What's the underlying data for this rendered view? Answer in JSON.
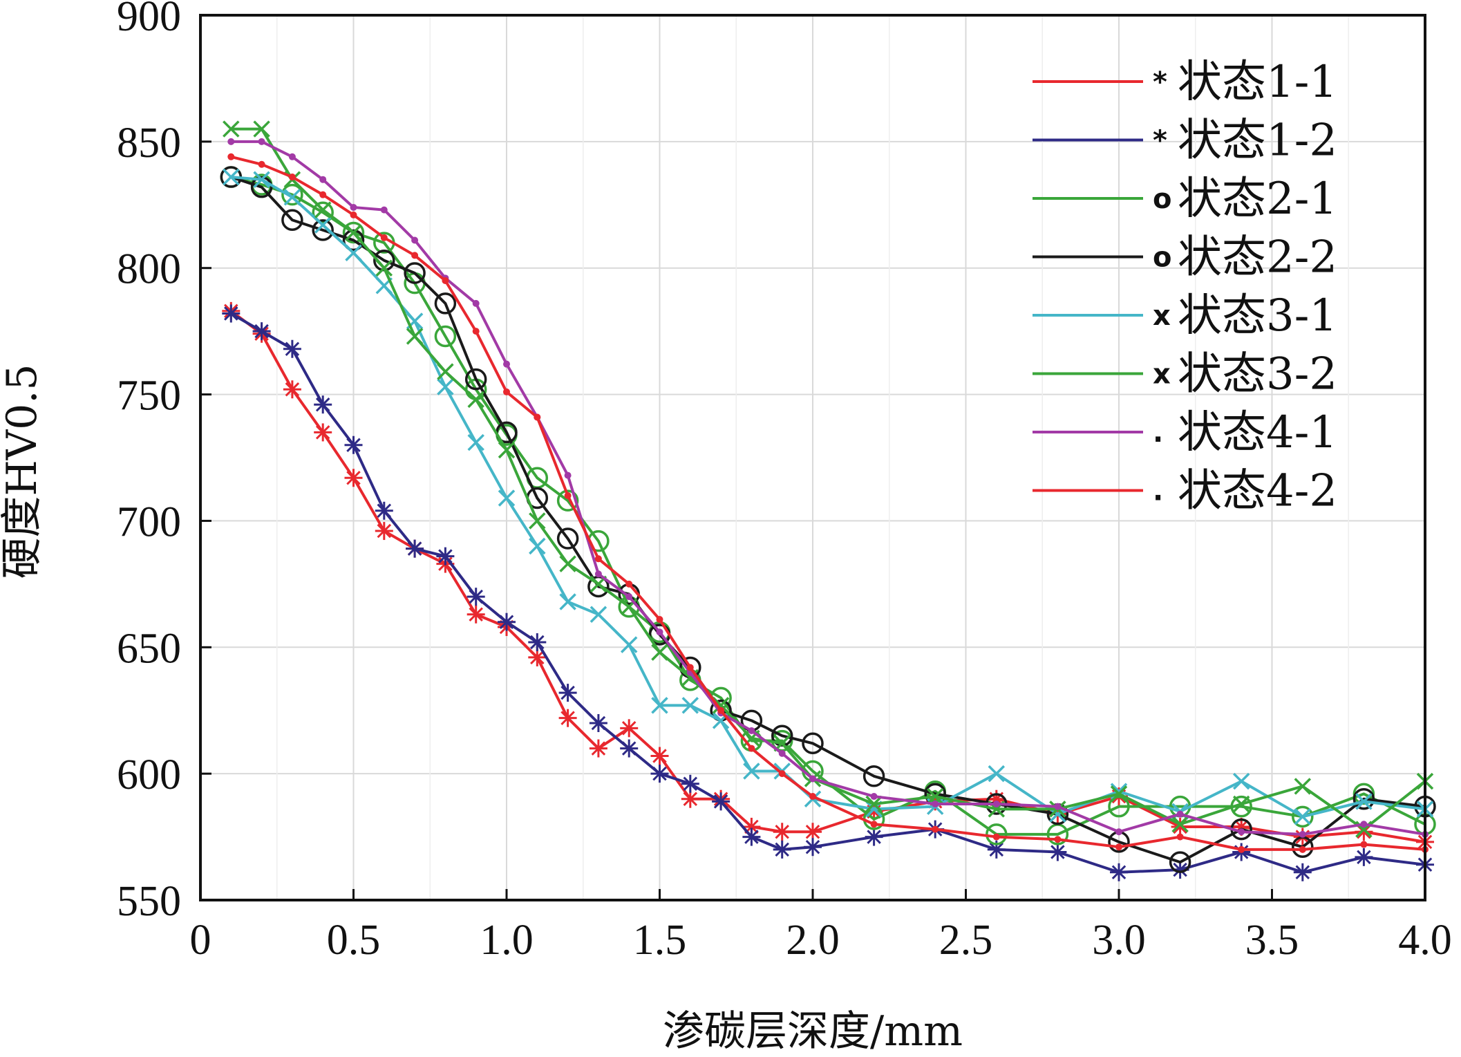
{
  "chart_data": {
    "type": "line",
    "xlabel": "渗碳层深度/mm",
    "ylabel": "硬度HV0.5",
    "xlim": [
      0,
      4.0
    ],
    "ylim": [
      550,
      900
    ],
    "x_ticks": [
      "0",
      "0.5",
      "1.0",
      "1.5",
      "2.0",
      "2.5",
      "3.0",
      "3.5",
      "4.0"
    ],
    "y_ticks": [
      "550",
      "600",
      "650",
      "700",
      "750",
      "800",
      "850",
      "900"
    ],
    "grid": true,
    "legend_position": "top-right",
    "series": [
      {
        "name": "状态1-1",
        "color": "#e8282e",
        "marker": "star",
        "x": [
          0.1,
          0.2,
          0.3,
          0.4,
          0.5,
          0.6,
          0.7,
          0.8,
          0.9,
          1.0,
          1.1,
          1.2,
          1.3,
          1.4,
          1.5,
          1.6,
          1.7,
          1.8,
          1.9,
          2.0,
          2.2,
          2.4,
          2.6,
          2.8,
          3.0,
          3.2,
          3.4,
          3.6,
          3.8,
          4.0
        ],
        "y": [
          783,
          774,
          752,
          735,
          717,
          696,
          689,
          683,
          663,
          658,
          646,
          622,
          610,
          618,
          607,
          590,
          590,
          579,
          577,
          577,
          585,
          589,
          590,
          584,
          591,
          579,
          579,
          575,
          577,
          573
        ]
      },
      {
        "name": "状态1-2",
        "color": "#2e2a86",
        "marker": "star",
        "x": [
          0.1,
          0.2,
          0.3,
          0.4,
          0.5,
          0.6,
          0.7,
          0.8,
          0.9,
          1.0,
          1.1,
          1.2,
          1.3,
          1.4,
          1.5,
          1.6,
          1.7,
          1.8,
          1.9,
          2.0,
          2.2,
          2.4,
          2.6,
          2.8,
          3.0,
          3.2,
          3.4,
          3.6,
          3.8,
          4.0
        ],
        "y": [
          782,
          775,
          768,
          746,
          730,
          704,
          689,
          686,
          670,
          660,
          652,
          632,
          620,
          610,
          600,
          596,
          589,
          575,
          570,
          571,
          575,
          578,
          570,
          569,
          561,
          562,
          569,
          561,
          567,
          564
        ]
      },
      {
        "name": "状态2-1",
        "color": "#3aa63a",
        "marker": "circle",
        "x": [
          0.1,
          0.2,
          0.3,
          0.4,
          0.5,
          0.6,
          0.7,
          0.8,
          0.9,
          1.0,
          1.1,
          1.2,
          1.3,
          1.4,
          1.5,
          1.6,
          1.7,
          1.8,
          1.9,
          2.0,
          2.2,
          2.4,
          2.6,
          2.8,
          3.0,
          3.2,
          3.4,
          3.6,
          3.8,
          4.0
        ],
        "y": [
          836,
          833,
          829,
          822,
          814,
          810,
          794,
          773,
          752,
          734,
          717,
          708,
          692,
          666,
          656,
          637,
          630,
          613,
          613,
          601,
          582,
          593,
          576,
          576,
          587,
          587,
          587,
          583,
          592,
          580
        ]
      },
      {
        "name": "状态2-2",
        "color": "#1a1a1a",
        "marker": "circle",
        "x": [
          0.1,
          0.2,
          0.3,
          0.4,
          0.5,
          0.6,
          0.7,
          0.8,
          0.9,
          1.0,
          1.1,
          1.2,
          1.3,
          1.4,
          1.5,
          1.6,
          1.7,
          1.8,
          1.9,
          2.0,
          2.2,
          2.4,
          2.6,
          2.8,
          3.0,
          3.2,
          3.4,
          3.6,
          3.8,
          4.0
        ],
        "y": [
          836,
          832,
          819,
          815,
          811,
          803,
          798,
          786,
          756,
          735,
          709,
          693,
          674,
          671,
          655,
          642,
          625,
          621,
          615,
          612,
          599,
          592,
          588,
          584,
          573,
          565,
          578,
          571,
          590,
          587
        ]
      },
      {
        "name": "状态3-1",
        "color": "#45b6c8",
        "marker": "x",
        "x": [
          0.1,
          0.2,
          0.3,
          0.4,
          0.5,
          0.6,
          0.7,
          0.8,
          0.9,
          1.0,
          1.1,
          1.2,
          1.3,
          1.4,
          1.5,
          1.6,
          1.7,
          1.8,
          1.9,
          2.0,
          2.2,
          2.4,
          2.6,
          2.8,
          3.0,
          3.2,
          3.4,
          3.6,
          3.8,
          4.0
        ],
        "y": [
          836,
          835,
          828,
          817,
          806,
          793,
          779,
          753,
          731,
          709,
          690,
          668,
          663,
          651,
          627,
          627,
          621,
          601,
          601,
          590,
          586,
          587,
          600,
          584,
          593,
          585,
          597,
          583,
          589,
          586
        ]
      },
      {
        "name": "状态3-2",
        "color": "#3aa63a",
        "marker": "x",
        "x": [
          0.1,
          0.2,
          0.3,
          0.4,
          0.5,
          0.6,
          0.7,
          0.8,
          0.9,
          1.0,
          1.1,
          1.2,
          1.3,
          1.4,
          1.5,
          1.6,
          1.7,
          1.8,
          1.9,
          2.0,
          2.2,
          2.4,
          2.6,
          2.8,
          3.0,
          3.2,
          3.4,
          3.6,
          3.8,
          4.0
        ],
        "y": [
          855,
          855,
          835,
          823,
          814,
          800,
          773,
          759,
          748,
          728,
          700,
          683,
          675,
          666,
          648,
          638,
          627,
          614,
          612,
          598,
          588,
          591,
          586,
          586,
          592,
          580,
          588,
          595,
          578,
          597
        ]
      },
      {
        "name": "状态4-1",
        "color": "#a23aa6",
        "marker": "dot",
        "x": [
          0.1,
          0.2,
          0.3,
          0.4,
          0.5,
          0.6,
          0.7,
          0.8,
          0.9,
          1.0,
          1.1,
          1.2,
          1.3,
          1.4,
          1.5,
          1.6,
          1.7,
          1.8,
          1.9,
          2.0,
          2.2,
          2.4,
          2.6,
          2.8,
          3.0,
          3.2,
          3.4,
          3.6,
          3.8,
          4.0
        ],
        "y": [
          850,
          850,
          844,
          835,
          824,
          823,
          811,
          796,
          786,
          762,
          741,
          718,
          679,
          670,
          656,
          640,
          624,
          617,
          608,
          598,
          591,
          588,
          588,
          587,
          577,
          584,
          577,
          576,
          580,
          576
        ]
      },
      {
        "name": "状态4-2",
        "color": "#e8282e",
        "marker": "dot",
        "x": [
          0.1,
          0.2,
          0.3,
          0.4,
          0.5,
          0.6,
          0.7,
          0.8,
          0.9,
          1.0,
          1.1,
          1.2,
          1.3,
          1.4,
          1.5,
          1.6,
          1.7,
          1.8,
          1.9,
          2.0,
          2.2,
          2.4,
          2.6,
          2.8,
          3.0,
          3.2,
          3.4,
          3.6,
          3.8,
          4.0
        ],
        "y": [
          844,
          841,
          836,
          829,
          821,
          812,
          805,
          795,
          775,
          751,
          741,
          710,
          685,
          675,
          661,
          642,
          625,
          610,
          600,
          591,
          580,
          578,
          575,
          574,
          571,
          575,
          570,
          570,
          572,
          570
        ]
      }
    ]
  }
}
